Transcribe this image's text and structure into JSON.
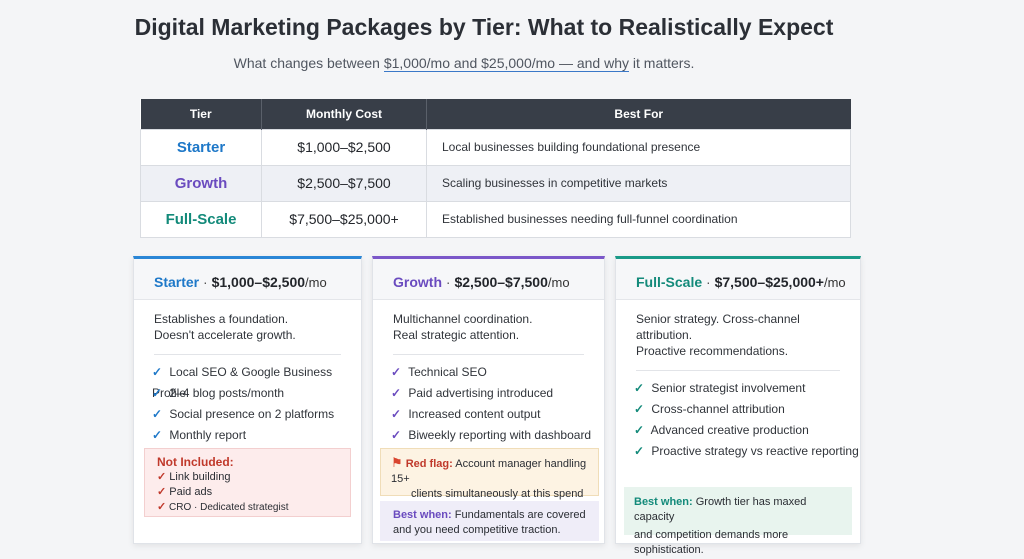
{
  "title": "Digital Marketing Packages by Tier: What to Realistically Expect",
  "subtitle": {
    "before": "What changes between ",
    "underlined": "$1,000/mo and $25,000/mo — and why",
    "after": " it matters."
  },
  "table": {
    "headers": [
      "Tier",
      "Monthly Cost",
      "Best For"
    ],
    "rows": [
      {
        "tier": "Starter",
        "cost": "$1,000–$2,500",
        "best": "Local businesses building foundational presence"
      },
      {
        "tier": "Growth",
        "cost": "$2,500–$7,500",
        "best": "Scaling businesses in competitive markets"
      },
      {
        "tier": "Full-Scale",
        "cost": "$7,500–$25,000+",
        "best": "Established businesses needing full-funnel coordination"
      }
    ]
  },
  "cards": {
    "starter": {
      "name": "Starter",
      "sep": " · ",
      "price": "$1,000–$2,500",
      "per": "/mo",
      "desc1": "Establishes a foundation.",
      "desc2": "Doesn't accelerate growth.",
      "features": [
        "Local SEO & Google Business Profile",
        "2–4 blog posts/month",
        "Social presence on 2 platforms",
        "Monthly report"
      ],
      "not_included_title": "Not Included:",
      "not_included": [
        "Link building",
        "Paid ads",
        "CRO · Dedicated strategist"
      ]
    },
    "growth": {
      "name": "Growth",
      "sep": " · ",
      "price": "$2,500–$7,500",
      "per": "/mo",
      "desc1": "Multichannel coordination.",
      "desc2": "Real strategic attention.",
      "features": [
        "Technical SEO",
        "Paid advertising introduced",
        "Increased content output",
        "Biweekly reporting with dashboard"
      ],
      "red_flag_label": "Red flag:",
      "red_flag_text1": " Account manager handling 15+",
      "red_flag_text2": "clients simultaneously at this spend level.",
      "best_when_label": "Best when:",
      "best_when_text1": " Fundamentals are covered",
      "best_when_text2": "and you need competitive traction."
    },
    "full": {
      "name": "Full-Scale",
      "sep": " · ",
      "price": "$7,500–$25,000+",
      "per": "/mo",
      "desc1": "Senior strategy. Cross-channel attribution.",
      "desc2": "Proactive recommendations.",
      "features": [
        "Senior strategist involvement",
        "Cross-channel attribution",
        "Advanced creative production",
        "Proactive strategy vs reactive reporting"
      ],
      "best_when_label": "Best when:",
      "best_when_text1": " Growth tier has maxed capacity",
      "best_when_text2": "and competition demands more sophistication."
    }
  },
  "colors": {
    "starter": "#1e78c8",
    "growth": "#6a4bbf",
    "full": "#138a7a",
    "red": "#c0392b"
  }
}
